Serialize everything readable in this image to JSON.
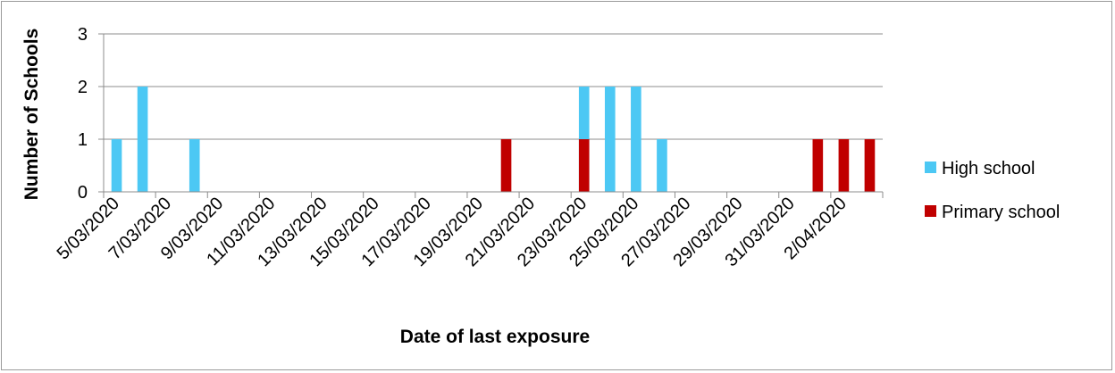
{
  "chart_data": {
    "type": "bar",
    "title": "",
    "xlabel": "Date of last exposure",
    "ylabel": "Number of Schools",
    "ylim": [
      0,
      3
    ],
    "yticks": [
      "0",
      "1",
      "2",
      "3"
    ],
    "grid": true,
    "legend_position": "right",
    "x_tick_labels": [
      "5/03/2020",
      "7/03/2020",
      "9/03/2020",
      "11/03/2020",
      "13/03/2020",
      "15/03/2020",
      "17/03/2020",
      "19/03/2020",
      "21/03/2020",
      "23/03/2020",
      "25/03/2020",
      "27/03/2020",
      "29/03/2020",
      "31/03/2020",
      "2/04/2020"
    ],
    "categories": [
      "5/03/2020",
      "6/03/2020",
      "7/03/2020",
      "8/03/2020",
      "9/03/2020",
      "10/03/2020",
      "11/03/2020",
      "12/03/2020",
      "13/03/2020",
      "14/03/2020",
      "15/03/2020",
      "16/03/2020",
      "17/03/2020",
      "18/03/2020",
      "19/03/2020",
      "20/03/2020",
      "21/03/2020",
      "22/03/2020",
      "23/03/2020",
      "24/03/2020",
      "25/03/2020",
      "26/03/2020",
      "27/03/2020",
      "28/03/2020",
      "29/03/2020",
      "30/03/2020",
      "31/03/2020",
      "1/04/2020",
      "2/04/2020",
      "3/04/2020"
    ],
    "series": [
      {
        "name": "High school",
        "color": "#4cc8f4",
        "values": [
          1,
          2,
          0,
          1,
          0,
          0,
          0,
          0,
          0,
          0,
          0,
          0,
          0,
          0,
          0,
          0,
          0,
          0,
          2,
          2,
          2,
          1,
          0,
          0,
          0,
          0,
          0,
          0,
          0,
          0
        ]
      },
      {
        "name": "Primary school",
        "color": "#c00000",
        "values": [
          0,
          0,
          0,
          0,
          0,
          0,
          0,
          0,
          0,
          0,
          0,
          0,
          0,
          0,
          0,
          1,
          0,
          0,
          1,
          0,
          0,
          0,
          0,
          0,
          0,
          0,
          0,
          1,
          1,
          1
        ]
      }
    ]
  }
}
